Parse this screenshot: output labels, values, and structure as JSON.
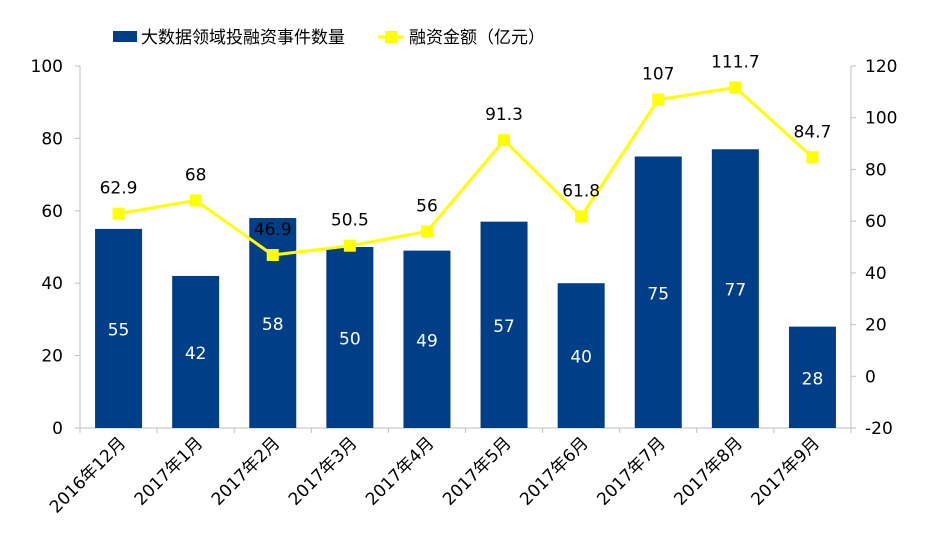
{
  "chart_data": {
    "type": "bar",
    "categories": [
      "2016年12月",
      "2017年1月",
      "2017年2月",
      "2017年3月",
      "2017年4月",
      "2017年5月",
      "2017年6月",
      "2017年7月",
      "2017年8月",
      "2017年9月"
    ],
    "series": [
      {
        "name": "大数据领域投融资事件数量",
        "type": "bar",
        "axis": "left",
        "color": "#003f88",
        "values": [
          55,
          42,
          58,
          50,
          49,
          57,
          40,
          75,
          77,
          28
        ]
      },
      {
        "name": "融资金额（亿元）",
        "type": "line",
        "axis": "right",
        "color": "#ffff00",
        "values": [
          62.9,
          68,
          46.9,
          50.5,
          56,
          91.3,
          61.8,
          107,
          111.7,
          84.7
        ]
      }
    ],
    "left_axis": {
      "min": 0,
      "max": 100,
      "ticks": [
        0,
        20,
        40,
        60,
        80,
        100
      ]
    },
    "right_axis": {
      "min": -20,
      "max": 120,
      "ticks": [
        -20,
        0,
        20,
        40,
        60,
        80,
        100,
        120
      ]
    },
    "bar_labels": [
      "55",
      "42",
      "58",
      "50",
      "49",
      "57",
      "40",
      "75",
      "77",
      "28"
    ],
    "line_labels": [
      "62.9",
      "68",
      "46.9",
      "50.5",
      "56",
      "91.3",
      "61.8",
      "107",
      "111.7",
      "84.7"
    ],
    "legend": {
      "position": "top",
      "bar_label": "大数据领域投融资事件数量",
      "line_label": "融资金额（亿元）"
    },
    "grid": false
  }
}
